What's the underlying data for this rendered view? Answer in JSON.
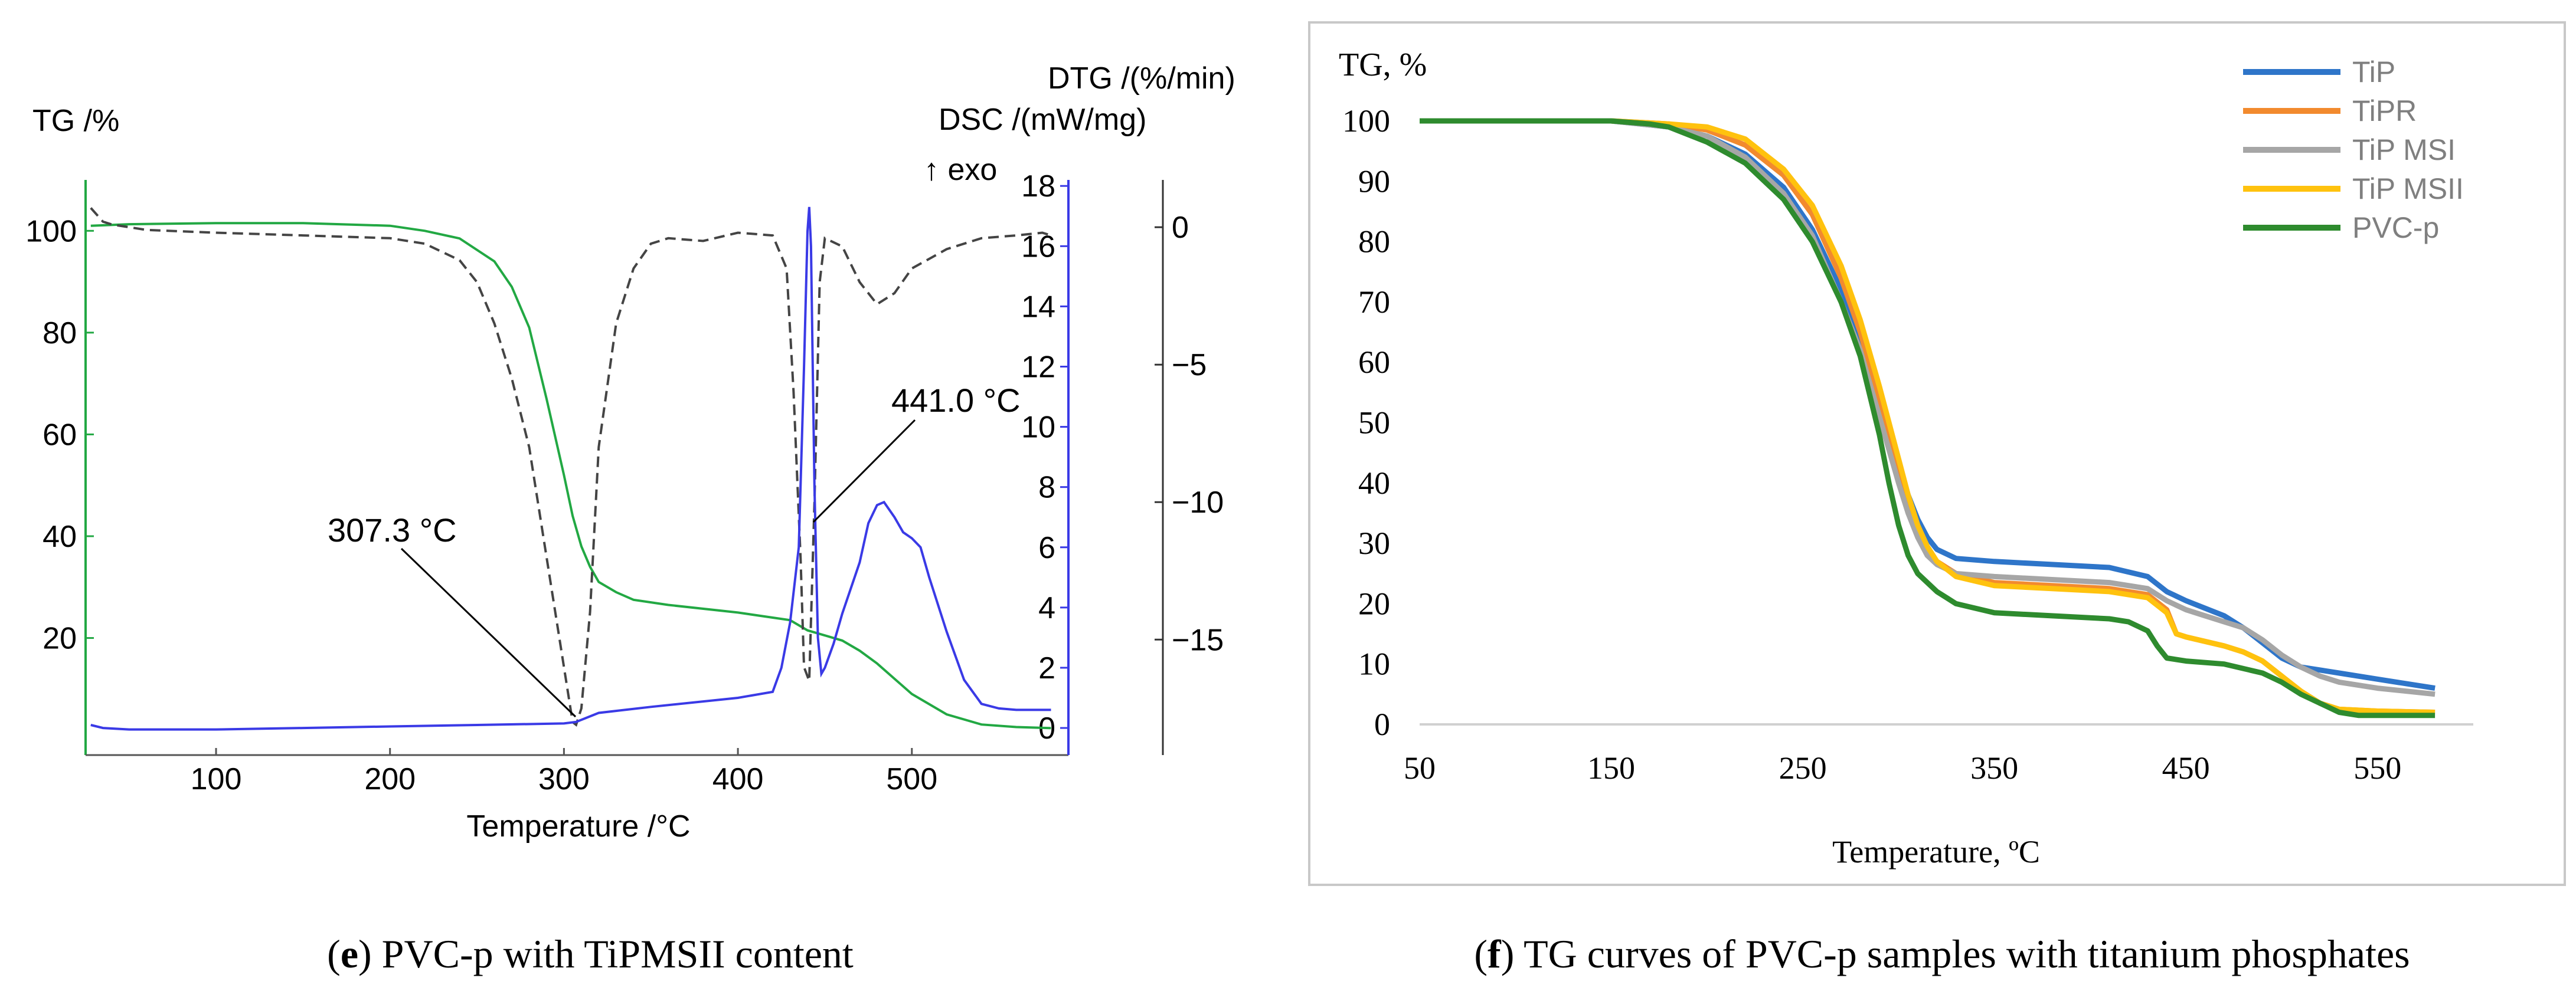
{
  "chart_data": [
    {
      "panel": "e",
      "type": "line",
      "caption_letter": "e",
      "caption_text": "PVC-p with TiPMSII content",
      "left_axis_label": "TG /%",
      "right_axis_label_dtg": "DTG /(%/min)",
      "right_axis_label_dsc": "DSC /(mW/mg)",
      "exo_label": "↑ exo",
      "xlabel": "Temperature /°C",
      "xlim": [
        25,
        590
      ],
      "xticks": [
        100,
        200,
        300,
        400,
        500
      ],
      "tg_ylim": [
        -3,
        110
      ],
      "tg_yticks": [
        20,
        40,
        60,
        80,
        100
      ],
      "dsc_ylim": [
        -0.9,
        18.2
      ],
      "dsc_yticks": [
        0,
        2,
        4,
        6,
        8,
        10,
        12,
        14,
        16,
        18
      ],
      "dtg_ylim": [
        -19.2,
        1.72
      ],
      "dtg_yticks": [
        0,
        -5,
        -10,
        -15
      ],
      "dtg_ytick_labels": [
        "0",
        "−5",
        "−10",
        "−15"
      ],
      "series": [
        {
          "name": "TG",
          "color": "#22a843",
          "axis": "tg",
          "x": [
            28,
            50,
            100,
            150,
            200,
            220,
            240,
            260,
            270,
            280,
            290,
            300,
            305,
            310,
            315,
            320,
            330,
            340,
            360,
            400,
            420,
            430,
            440,
            450,
            460,
            470,
            480,
            490,
            500,
            520,
            540,
            560,
            580
          ],
          "y": [
            101,
            101.3,
            101.5,
            101.5,
            101,
            100,
            98.5,
            94,
            89,
            81,
            67,
            52,
            44,
            38,
            34,
            31,
            29,
            27.5,
            26.5,
            25,
            24,
            23.5,
            21.5,
            20.5,
            19.5,
            17.5,
            15,
            12,
            9,
            5,
            3,
            2.5,
            2.3
          ]
        },
        {
          "name": "DSC",
          "color": "#3a3ae6",
          "axis": "dsc",
          "x": [
            28,
            35,
            50,
            100,
            150,
            200,
            250,
            300,
            307,
            320,
            350,
            400,
            420,
            425,
            430,
            435,
            438,
            440,
            441,
            442,
            444,
            446,
            448,
            450,
            455,
            460,
            470,
            475,
            480,
            484,
            490,
            495,
            500,
            505,
            510,
            520,
            530,
            540,
            550,
            560,
            570,
            580
          ],
          "y": [
            0.1,
            0,
            -0.05,
            -0.05,
            0,
            0.05,
            0.1,
            0.15,
            0.2,
            0.5,
            0.7,
            1.0,
            1.2,
            2.0,
            3.5,
            6.0,
            12.0,
            16.5,
            17.3,
            16.0,
            8.0,
            3.0,
            1.8,
            2.0,
            2.8,
            3.8,
            5.5,
            6.8,
            7.4,
            7.5,
            7.0,
            6.5,
            6.3,
            6.0,
            5.0,
            3.2,
            1.6,
            0.8,
            0.65,
            0.6,
            0.6,
            0.6
          ]
        },
        {
          "name": "DTG",
          "color": "#444444",
          "dashed": true,
          "axis": "dtg",
          "x": [
            28,
            35,
            40,
            60,
            100,
            150,
            200,
            220,
            240,
            250,
            260,
            270,
            280,
            290,
            300,
            305,
            307,
            310,
            315,
            320,
            330,
            340,
            350,
            360,
            380,
            400,
            420,
            428,
            432,
            436,
            438,
            441,
            444,
            447,
            450,
            460,
            470,
            480,
            490,
            500,
            520,
            540,
            560,
            575,
            580
          ],
          "y": [
            0.7,
            0.2,
            0.1,
            -0.1,
            -0.2,
            -0.3,
            -0.4,
            -0.6,
            -1.2,
            -2,
            -3.5,
            -5.5,
            -8,
            -12,
            -16,
            -18,
            -18.1,
            -17.5,
            -14,
            -8,
            -3.5,
            -1.5,
            -0.6,
            -0.4,
            -0.5,
            -0.2,
            -0.3,
            -1.5,
            -6,
            -12,
            -16,
            -16.5,
            -10,
            -2,
            -0.4,
            -0.7,
            -2.0,
            -2.8,
            -2.4,
            -1.5,
            -0.8,
            -0.4,
            -0.3,
            -0.2,
            -0.3
          ]
        }
      ],
      "annotations": [
        {
          "text": "307.3 °C",
          "x": 307.3
        },
        {
          "text": "441.0 °C",
          "x": 441.0
        }
      ]
    },
    {
      "panel": "f",
      "type": "line",
      "caption_letter": "f",
      "caption_text": "TG curves of PVC-p samples with titanium phosphates",
      "title": "TG, %",
      "xlabel": "Temperature, ºC",
      "xlim": [
        50,
        600
      ],
      "xticks": [
        50,
        150,
        250,
        350,
        450,
        550
      ],
      "ylim": [
        0,
        100
      ],
      "yticks": [
        0,
        10,
        20,
        30,
        40,
        50,
        60,
        70,
        80,
        90,
        100
      ],
      "legend_position": "top-right",
      "series": [
        {
          "name": "TiP",
          "color": "#2e75c9",
          "x": [
            50,
            100,
            150,
            180,
            200,
            220,
            240,
            255,
            270,
            280,
            290,
            300,
            305,
            310,
            315,
            320,
            330,
            350,
            380,
            410,
            430,
            440,
            450,
            470,
            480,
            490,
            500,
            510,
            530,
            550,
            580
          ],
          "y": [
            100,
            100,
            100,
            99,
            97.5,
            94.5,
            89,
            82,
            72,
            64,
            54,
            43,
            38,
            34,
            31,
            29,
            27.5,
            27,
            26.5,
            26,
            24.5,
            22,
            20.5,
            18,
            16,
            13.5,
            11,
            9.5,
            8.5,
            7.5,
            6
          ]
        },
        {
          "name": "TiPR",
          "color": "#f28a2e",
          "x": [
            50,
            100,
            150,
            180,
            200,
            220,
            240,
            255,
            270,
            280,
            290,
            300,
            305,
            310,
            315,
            320,
            330,
            350,
            380,
            410,
            430,
            440,
            445,
            450,
            470,
            480,
            490,
            500,
            510,
            520,
            530,
            550,
            580
          ],
          "y": [
            100,
            100,
            100,
            99.5,
            98.5,
            96,
            91,
            84.5,
            74,
            65,
            54,
            42,
            37,
            32.5,
            29,
            27,
            25,
            23.5,
            23,
            22.5,
            21.5,
            19,
            15,
            14.5,
            13,
            12,
            10.5,
            8,
            5.5,
            3.5,
            2.5,
            2.2,
            2
          ]
        },
        {
          "name": "TiP MSI",
          "color": "#a6a6a6",
          "x": [
            50,
            100,
            150,
            180,
            200,
            220,
            240,
            255,
            270,
            280,
            290,
            300,
            305,
            310,
            315,
            320,
            330,
            350,
            380,
            410,
            430,
            440,
            450,
            460,
            480,
            490,
            500,
            510,
            520,
            530,
            550,
            580
          ],
          "y": [
            100,
            100,
            100,
            99,
            97.5,
            94,
            88,
            81,
            70,
            62,
            51,
            40,
            35,
            31,
            28,
            26.5,
            25,
            24.5,
            24,
            23.5,
            22.5,
            20.5,
            19,
            18,
            16,
            14,
            11.5,
            9.5,
            8,
            7,
            6,
            5
          ]
        },
        {
          "name": "TiP MSII",
          "color": "#ffc20e",
          "x": [
            50,
            100,
            150,
            180,
            200,
            220,
            240,
            255,
            270,
            280,
            290,
            300,
            305,
            310,
            315,
            320,
            330,
            350,
            380,
            410,
            430,
            440,
            445,
            450,
            470,
            480,
            490,
            500,
            510,
            520,
            530,
            550,
            580
          ],
          "y": [
            100,
            100,
            100,
            99.5,
            99,
            97,
            92,
            86,
            76,
            67,
            56,
            44,
            38,
            33,
            29.5,
            27,
            24.5,
            23,
            22.5,
            22,
            21,
            18.5,
            15,
            14.5,
            13,
            12,
            10.5,
            8,
            5.5,
            3.5,
            2.5,
            2.2,
            2
          ]
        },
        {
          "name": "PVC-p",
          "color": "#2e8b2e",
          "x": [
            50,
            100,
            150,
            170,
            180,
            200,
            220,
            240,
            255,
            270,
            280,
            290,
            295,
            300,
            305,
            310,
            320,
            330,
            350,
            380,
            410,
            420,
            430,
            435,
            440,
            450,
            470,
            490,
            500,
            510,
            520,
            530,
            540,
            550,
            580
          ],
          "y": [
            100,
            100,
            100,
            99.5,
            99,
            96.5,
            93,
            87,
            80,
            70,
            61,
            48,
            40,
            33,
            28,
            25,
            22,
            20,
            18.5,
            18,
            17.5,
            17,
            15.5,
            13,
            11,
            10.5,
            10,
            8.5,
            7,
            5,
            3.5,
            2,
            1.5,
            1.5,
            1.5
          ]
        }
      ]
    }
  ]
}
